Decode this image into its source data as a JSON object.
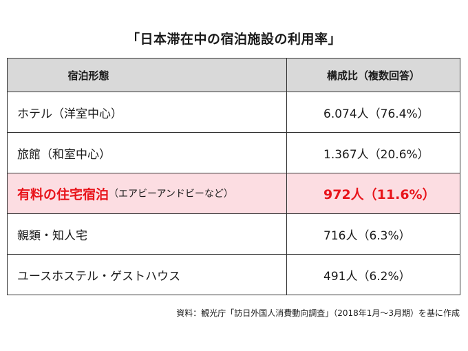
{
  "title": "「日本滞在中の宿泊施設の利用率」",
  "table": {
    "headers": {
      "type": "宿泊形態",
      "ratio": "構成比（複数回答）"
    },
    "rows": [
      {
        "type": "ホテル（洋室中心）",
        "value": "6.074人（76.4%）"
      },
      {
        "type": "旅館（和室中心）",
        "value": "1.367人（20.6%）"
      },
      {
        "type_main": "有料の住宅宿泊",
        "type_sub": "（エアビーアンドビーなど）",
        "value": "972人（11.6%）"
      },
      {
        "type": "親類・知人宅",
        "value": "716人（6.3%）"
      },
      {
        "type": "ユースホステル・ゲストハウス",
        "value": "491人（6.2%）"
      }
    ]
  },
  "source": "資料：観光庁「訪日外国人消費動向調査」（2018年1月〜3月期）を基に作成",
  "colors": {
    "header_bg": "#d9d9d9",
    "highlight_bg": "#fcdde2",
    "highlight_text": "#e8141b",
    "border": "#333333"
  }
}
